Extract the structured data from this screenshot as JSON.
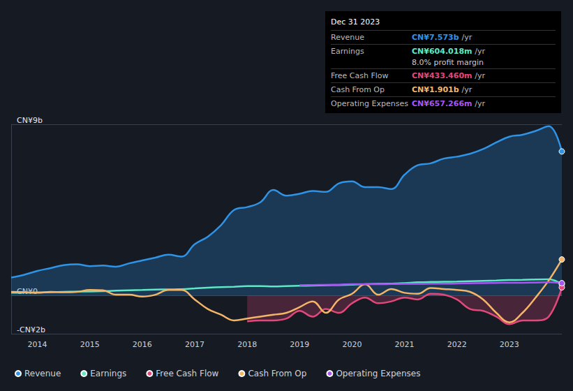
{
  "chart_data": {
    "type": "line",
    "x": [
      2013.5,
      2013.75,
      2014,
      2014.25,
      2014.5,
      2014.75,
      2015,
      2015.25,
      2015.5,
      2015.75,
      2016,
      2016.25,
      2016.5,
      2016.75,
      2017,
      2017.25,
      2017.5,
      2017.75,
      2018,
      2018.25,
      2018.5,
      2018.75,
      2019,
      2019.25,
      2019.5,
      2019.75,
      2020,
      2020.25,
      2020.5,
      2020.75,
      2021,
      2021.25,
      2021.5,
      2021.75,
      2022,
      2022.25,
      2022.5,
      2022.75,
      2023,
      2023.25,
      2023.5,
      2023.75,
      2024
    ],
    "series": [
      {
        "name": "Revenue",
        "color": "#2f93e6",
        "values": [
          0.95,
          1.1,
          1.3,
          1.45,
          1.6,
          1.65,
          1.55,
          1.58,
          1.52,
          1.7,
          1.85,
          2.0,
          2.15,
          2.05,
          2.7,
          3.1,
          3.7,
          4.5,
          4.65,
          4.9,
          5.55,
          5.25,
          5.35,
          5.5,
          5.45,
          5.9,
          6.0,
          5.7,
          5.7,
          5.6,
          6.35,
          6.85,
          6.95,
          7.2,
          7.3,
          7.45,
          7.7,
          8.05,
          8.35,
          8.45,
          8.65,
          8.9,
          7.573
        ]
      },
      {
        "name": "Earnings",
        "color": "#5ee8c5",
        "values": [
          0.15,
          0.16,
          0.17,
          0.18,
          0.2,
          0.21,
          0.22,
          0.24,
          0.26,
          0.28,
          0.3,
          0.32,
          0.33,
          0.34,
          0.38,
          0.42,
          0.45,
          0.47,
          0.5,
          0.5,
          0.48,
          0.5,
          0.52,
          0.53,
          0.55,
          0.56,
          0.58,
          0.6,
          0.62,
          0.63,
          0.66,
          0.7,
          0.72,
          0.73,
          0.74,
          0.76,
          0.78,
          0.8,
          0.82,
          0.83,
          0.85,
          0.86,
          0.604
        ]
      },
      {
        "name": "Free Cash Flow",
        "color": "#e2487a",
        "values": [
          null,
          null,
          null,
          null,
          null,
          null,
          null,
          null,
          null,
          null,
          null,
          null,
          null,
          null,
          null,
          null,
          null,
          null,
          -1.35,
          -1.3,
          -1.3,
          -1.2,
          -0.8,
          -1.1,
          -0.7,
          -0.9,
          -0.4,
          -0.1,
          -0.4,
          -0.3,
          -0.1,
          -0.2,
          0.1,
          0.05,
          -0.2,
          -0.7,
          -0.8,
          -1.1,
          -1.5,
          -1.3,
          -1.3,
          -1.1,
          0.433
        ]
      },
      {
        "name": "Cash From Op",
        "color": "#f4b567",
        "values": [
          0.2,
          0.18,
          0.15,
          0.2,
          0.18,
          0.2,
          0.3,
          0.28,
          0.05,
          0.05,
          -0.05,
          0.05,
          0.3,
          0.3,
          -0.2,
          -0.7,
          -1.0,
          -1.3,
          -1.2,
          -1.1,
          -1.0,
          -0.9,
          -0.6,
          -0.3,
          -0.9,
          -0.2,
          0.1,
          0.6,
          0.05,
          0.35,
          0.15,
          0.1,
          0.4,
          0.35,
          0.3,
          0.2,
          -0.2,
          -0.9,
          -1.4,
          -0.9,
          -0.1,
          0.8,
          1.901
        ]
      },
      {
        "name": "Operating Expenses",
        "color": "#a855f7",
        "values": [
          null,
          null,
          null,
          null,
          null,
          null,
          null,
          null,
          null,
          null,
          null,
          null,
          null,
          null,
          null,
          null,
          null,
          null,
          null,
          null,
          null,
          null,
          0.55,
          0.56,
          0.57,
          0.58,
          0.6,
          0.6,
          0.6,
          0.61,
          0.62,
          0.62,
          0.63,
          0.63,
          0.64,
          0.65,
          0.66,
          0.67,
          0.68,
          0.68,
          0.69,
          0.7,
          0.657
        ]
      }
    ],
    "xlim": [
      2013.5,
      2024
    ],
    "xticks": [
      2014,
      2015,
      2016,
      2017,
      2018,
      2019,
      2020,
      2021,
      2022,
      2023
    ],
    "ylim": [
      -2,
      9
    ],
    "yticks": [
      {
        "value": -2,
        "label": "-CN¥2b"
      },
      {
        "value": 0,
        "label": "CN¥0"
      },
      {
        "value": 9,
        "label": "CN¥9b"
      }
    ],
    "grid": true,
    "legend": "bottom left",
    "tooltip_box": {
      "date": "Dec 31 2023",
      "rows": [
        {
          "label": "Revenue",
          "value": "CN¥7.573b",
          "suffix": "/yr"
        },
        {
          "label": "Earnings",
          "value": "CN¥604.018m",
          "suffix": "/yr",
          "sub": "8.0% profit margin"
        },
        {
          "label": "Free Cash Flow",
          "value": "CN¥433.460m",
          "suffix": "/yr"
        },
        {
          "label": "Cash From Op",
          "value": "CN¥1.901b",
          "suffix": "/yr"
        },
        {
          "label": "Operating Expenses",
          "value": "CN¥657.266m",
          "suffix": "/yr"
        }
      ]
    }
  }
}
